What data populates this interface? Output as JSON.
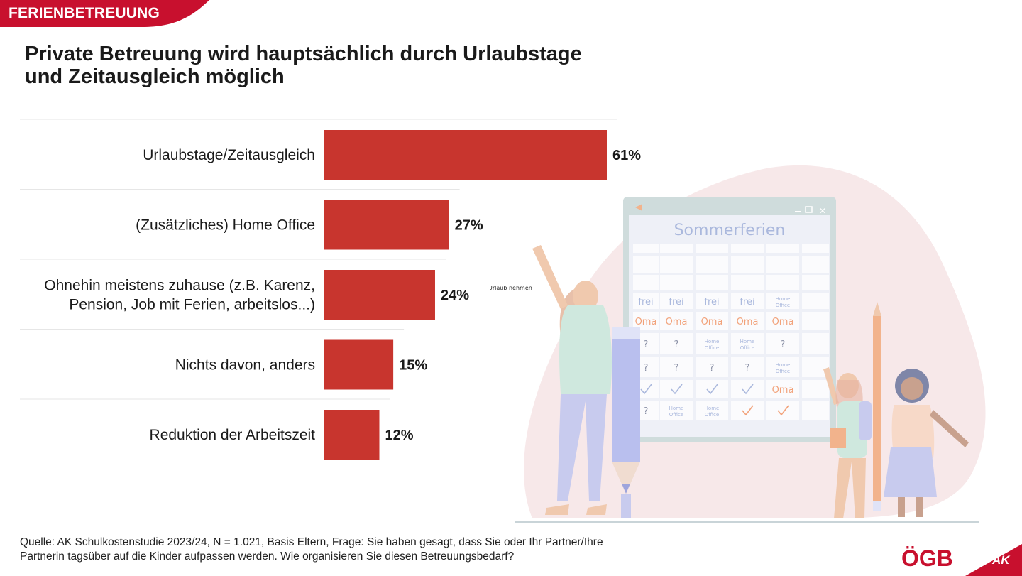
{
  "header": {
    "tag": "FERIENBETREUUNG"
  },
  "title_line1": "Private Betreuung wird hauptsächlich durch Urlaubstage",
  "title_line2": "und Zeitausgleich möglich",
  "chart_data": {
    "type": "bar",
    "orientation": "horizontal",
    "categories": [
      [
        "Urlaubstage/Zeitausgleich"
      ],
      [
        "(Zusätzliches) Home Office"
      ],
      [
        "Ohnehin meistens zuhause (z.B. Karenz,",
        "Pension, Job mit Ferien, arbeitslos...)"
      ],
      [
        "Nichts davon, anders"
      ],
      [
        "Reduktion der Arbeitszeit"
      ]
    ],
    "values": [
      61,
      27,
      24,
      15,
      12
    ],
    "value_labels": [
      "61%",
      "27%",
      "24%",
      "15%",
      "12%"
    ],
    "xlim": [
      0,
      61
    ],
    "bar_color": "#c8352e",
    "grid": false,
    "legend": "none"
  },
  "illustration": {
    "calendar_title": "Sommerferien",
    "note": "Urlaub nehmen",
    "cells": {
      "frei": "frei",
      "oma": "Oma",
      "q": "?",
      "home": "Home",
      "office": "Office"
    }
  },
  "source_line1": "Quelle: AK Schulkostenstudie 2023/24, N = 1.021, Basis Eltern, Frage: Sie haben gesagt, dass Sie oder Ihr Partner/Ihre",
  "source_line2": "Partnerin tagsüber auf die Kinder aufpassen werden. Wie organisieren Sie diesen Betreuungsbedarf?",
  "logos": {
    "ogb": "ÖGB",
    "ak": "AK"
  },
  "colors": {
    "brand_red": "#c8102e",
    "bar_red": "#c8352e"
  }
}
